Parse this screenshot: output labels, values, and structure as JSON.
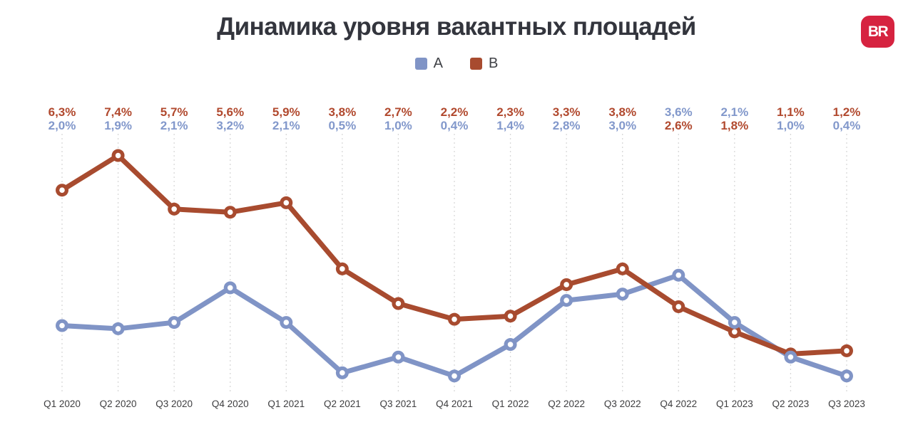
{
  "header": {
    "title": "Динамика уровня вакантных площадей",
    "logo_text": "BR",
    "logo_color": "#d62340"
  },
  "chart_data": {
    "type": "line",
    "title": "Динамика уровня вакантных площадей",
    "xlabel": "",
    "ylabel": "",
    "ylim": [
      0,
      8
    ],
    "grid": "vertical-dashed",
    "legend_position": "top-center",
    "categories": [
      "Q1 2020",
      "Q2 2020",
      "Q3 2020",
      "Q4 2020",
      "Q1 2021",
      "Q2 2021",
      "Q3 2021",
      "Q4 2021",
      "Q1 2022",
      "Q2 2022",
      "Q3 2022",
      "Q4 2022",
      "Q1 2023",
      "Q2 2023",
      "Q3 2023"
    ],
    "series": [
      {
        "name": "A",
        "color": "#8094c6",
        "label_color": "#8298cb",
        "values": [
          2.0,
          1.9,
          2.1,
          3.2,
          2.1,
          0.5,
          1.0,
          0.4,
          1.4,
          2.8,
          3.0,
          3.6,
          2.1,
          1.0,
          0.4
        ],
        "labels": [
          "2,0%",
          "1,9%",
          "2,1%",
          "3,2%",
          "2,1%",
          "0,5%",
          "1,0%",
          "0,4%",
          "1,4%",
          "2,8%",
          "3,0%",
          "3,6%",
          "2,1%",
          "1,0%",
          "0,4%"
        ]
      },
      {
        "name": "B",
        "color": "#a84b2f",
        "label_color": "#b1492e",
        "values": [
          6.3,
          7.4,
          5.7,
          5.6,
          5.9,
          3.8,
          2.7,
          2.2,
          2.3,
          3.3,
          3.8,
          2.6,
          1.8,
          1.1,
          1.2
        ],
        "labels": [
          "6,3%",
          "7,4%",
          "5,7%",
          "5,6%",
          "5,9%",
          "3,8%",
          "2,7%",
          "2,2%",
          "2,3%",
          "3,3%",
          "3,8%",
          "2,6%",
          "1,8%",
          "1,1%",
          "1,2%"
        ]
      }
    ],
    "gridline_color": "#d8d8d8",
    "axis_label_color": "#3e3e40",
    "marker_inner_color": "#ffffff"
  }
}
